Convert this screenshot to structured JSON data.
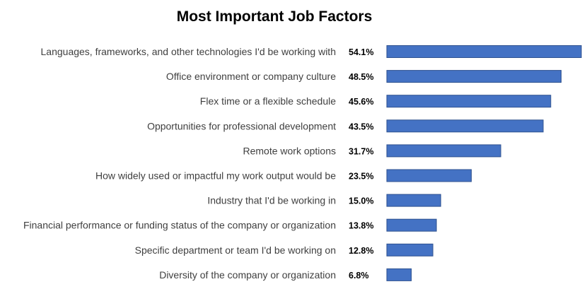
{
  "chart_data": {
    "type": "bar",
    "orientation": "horizontal",
    "title": "Most Important Job Factors",
    "xlabel": "",
    "ylabel": "",
    "xlim": [
      0,
      54.1
    ],
    "grid": false,
    "legend": "none",
    "categories": [
      "Languages, frameworks, and other technologies I'd be working with",
      "Office environment or company culture",
      "Flex time or a flexible schedule",
      "Opportunities for professional development",
      "Remote work options",
      "How widely used or impactful my work output would be",
      "Industry that I'd be working in",
      "Financial performance or funding status of the company or organization",
      "Specific department or team I'd be working on",
      "Diversity of the company or organization"
    ],
    "values": [
      54.1,
      48.5,
      45.6,
      43.5,
      31.7,
      23.5,
      15.0,
      13.8,
      12.8,
      6.8
    ],
    "value_labels": [
      "54.1%",
      "48.5%",
      "45.6%",
      "43.5%",
      "31.7%",
      "23.5%",
      "15.0%",
      "13.8%",
      "12.8%",
      "6.8%"
    ],
    "bar_color": "#4472c4",
    "bar_edge_color": "#2f528f"
  }
}
